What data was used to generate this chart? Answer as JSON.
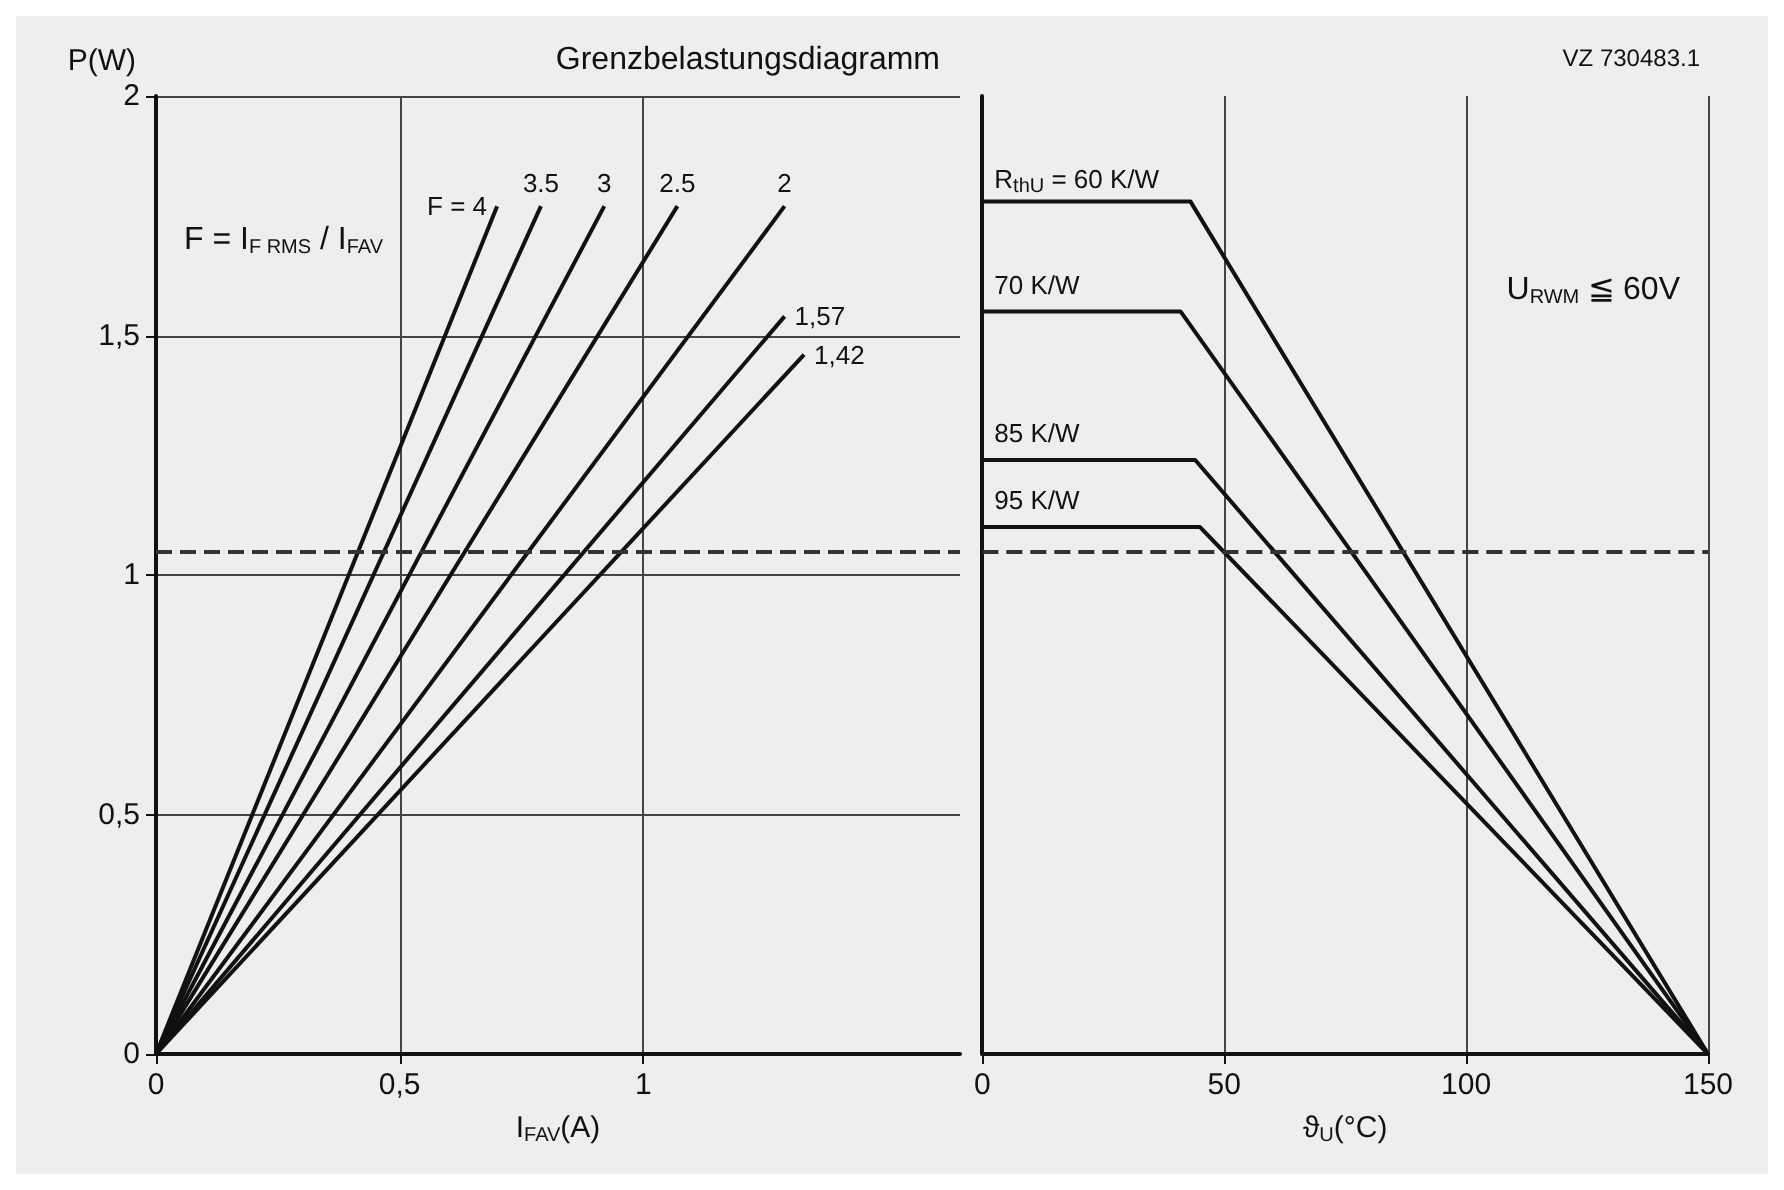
{
  "chart_data": [
    {
      "type": "line",
      "title": "Grenzbelastungsdiagramm",
      "ylabel": "P(W)",
      "xlabel": "I$_{FAV}$(A)",
      "annotations": [
        "F = I$_{F RMS}$ / I$_{FAV}$"
      ],
      "xlim": [
        0,
        1.65
      ],
      "xticks": [
        0,
        {
          "value": 0.5,
          "label": "0,5"
        },
        1
      ],
      "ylim": [
        0,
        2
      ],
      "yticks": [
        0,
        {
          "value": 0.5,
          "label": "0,5"
        },
        1,
        {
          "value": 1.5,
          "label": "1,5"
        },
        2
      ],
      "grid": true,
      "ref_lines": [
        {
          "axis": "y",
          "value": 1.05,
          "line_style": "dashed"
        }
      ],
      "series": [
        {
          "name": "F = 4",
          "color": "#111111",
          "x": [
            0,
            0.7
          ],
          "values": [
            0,
            1.77
          ]
        },
        {
          "name": "3.5",
          "color": "#111111",
          "x": [
            0,
            0.79
          ],
          "values": [
            0,
            1.77
          ]
        },
        {
          "name": "3",
          "color": "#111111",
          "x": [
            0,
            0.92
          ],
          "values": [
            0,
            1.77
          ]
        },
        {
          "name": "2.5",
          "color": "#111111",
          "x": [
            0,
            1.07
          ],
          "values": [
            0,
            1.77
          ]
        },
        {
          "name": "2",
          "color": "#111111",
          "x": [
            0,
            1.29
          ],
          "values": [
            0,
            1.77
          ]
        },
        {
          "name": "1,57",
          "color": "#111111",
          "x": [
            0,
            1.29
          ],
          "values": [
            0,
            1.54
          ]
        },
        {
          "name": "1,42",
          "color": "#111111",
          "x": [
            0,
            1.33
          ],
          "values": [
            0,
            1.46
          ]
        }
      ]
    },
    {
      "type": "line",
      "xlabel": "ϑ$_{U}$(°C)",
      "annotations": [
        "VZ 730483.1",
        "U$_{RWM}$ ≦ 60V"
      ],
      "xlim": [
        0,
        150
      ],
      "xticks": [
        0,
        50,
        100,
        150
      ],
      "ylim": [
        0,
        2
      ],
      "grid": true,
      "tick_labels": "x",
      "ref_lines": [
        {
          "axis": "y",
          "value": 1.05,
          "line_style": "dashed"
        }
      ],
      "series": [
        {
          "name": "R$_{thU}$ = 60 K/W",
          "color": "#111111",
          "x": [
            0,
            43,
            150
          ],
          "values": [
            1.78,
            1.78,
            0
          ]
        },
        {
          "name": "70 K/W",
          "color": "#111111",
          "x": [
            0,
            41,
            150
          ],
          "values": [
            1.55,
            1.55,
            0
          ]
        },
        {
          "name": "85 K/W",
          "color": "#111111",
          "x": [
            0,
            44,
            150
          ],
          "values": [
            1.24,
            1.24,
            0
          ]
        },
        {
          "name": "95 K/W",
          "color": "#111111",
          "x": [
            0,
            45,
            150
          ],
          "values": [
            1.1,
            1.1,
            0
          ]
        }
      ]
    }
  ]
}
